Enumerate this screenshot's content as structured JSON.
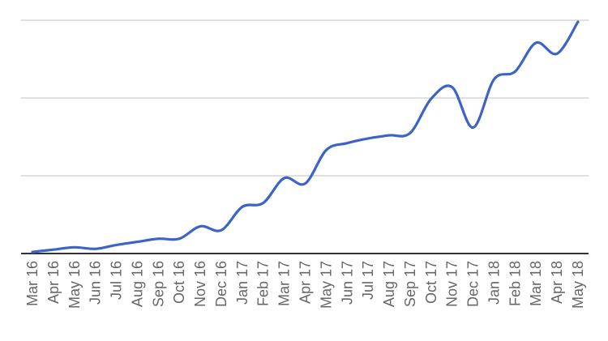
{
  "chart_data": {
    "type": "line",
    "title": "",
    "xlabel": "",
    "ylabel": "",
    "categories": [
      "Mar 16",
      "Apr 16",
      "May 16",
      "Jun 16",
      "Jul 16",
      "Aug 16",
      "Sep 16",
      "Oct 16",
      "Nov 16",
      "Dec 16",
      "Jan 17",
      "Feb 17",
      "Mar 17",
      "Apr 17",
      "May 17",
      "Jun 17",
      "Jul 17",
      "Aug 17",
      "Sep 17",
      "Oct 17",
      "Nov 17",
      "Dec 17",
      "Jan 18",
      "Feb 18",
      "Mar 18",
      "Apr 18",
      "May 18"
    ],
    "ylim": [
      0,
      3
    ],
    "y_gridlines": [
      0,
      1,
      2,
      3
    ],
    "y_tick_labels_shown": false,
    "grid": true,
    "legend": "none",
    "series": [
      {
        "color": "#3c64c8",
        "values": [
          0.02,
          0.05,
          0.08,
          0.06,
          0.11,
          0.15,
          0.19,
          0.19,
          0.35,
          0.3,
          0.6,
          0.65,
          0.97,
          0.9,
          1.33,
          1.42,
          1.48,
          1.52,
          1.55,
          1.99,
          2.14,
          1.62,
          2.24,
          2.34,
          2.71,
          2.57,
          2.98
        ]
      }
    ]
  }
}
